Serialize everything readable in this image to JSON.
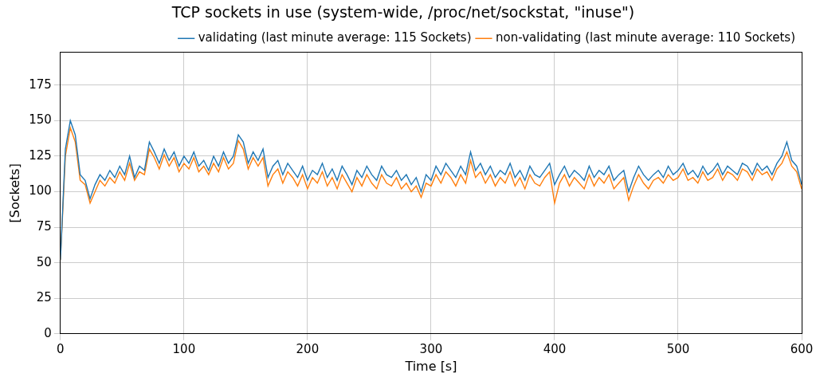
{
  "chart_data": {
    "type": "line",
    "title": "TCP sockets in use (system-wide, /proc/net/sockstat, \"inuse\")",
    "x_label": "Time [s]",
    "y_label": "[Sockets]",
    "x": [
      0,
      4,
      8,
      12,
      16,
      20,
      24,
      28,
      32,
      36,
      40,
      44,
      48,
      52,
      56,
      60,
      64,
      68,
      72,
      76,
      80,
      84,
      88,
      92,
      96,
      100,
      104,
      108,
      112,
      116,
      120,
      124,
      128,
      132,
      136,
      140,
      144,
      148,
      152,
      156,
      160,
      164,
      168,
      172,
      176,
      180,
      184,
      188,
      192,
      196,
      200,
      204,
      208,
      212,
      216,
      220,
      224,
      228,
      232,
      236,
      240,
      244,
      248,
      252,
      256,
      260,
      264,
      268,
      272,
      276,
      280,
      284,
      288,
      292,
      296,
      300,
      304,
      308,
      312,
      316,
      320,
      324,
      328,
      332,
      336,
      340,
      344,
      348,
      352,
      356,
      360,
      364,
      368,
      372,
      376,
      380,
      384,
      388,
      392,
      396,
      400,
      404,
      408,
      412,
      416,
      420,
      424,
      428,
      432,
      436,
      440,
      444,
      448,
      452,
      456,
      460,
      464,
      468,
      472,
      476,
      480,
      484,
      488,
      492,
      496,
      500,
      504,
      508,
      512,
      516,
      520,
      524,
      528,
      532,
      536,
      540,
      544,
      548,
      552,
      556,
      560,
      564,
      568,
      572,
      576,
      580,
      584,
      588,
      592,
      596,
      600
    ],
    "series": [
      {
        "name": "validating (last minute average: 115 Sockets)",
        "color": "#1f77b4",
        "values": [
          52,
          130,
          150,
          140,
          112,
          108,
          95,
          105,
          112,
          108,
          115,
          110,
          118,
          112,
          125,
          110,
          118,
          115,
          135,
          128,
          120,
          130,
          122,
          128,
          118,
          125,
          120,
          128,
          118,
          122,
          115,
          125,
          118,
          128,
          120,
          125,
          140,
          135,
          120,
          128,
          122,
          130,
          110,
          118,
          122,
          112,
          120,
          115,
          110,
          118,
          108,
          115,
          112,
          120,
          110,
          116,
          108,
          118,
          112,
          105,
          115,
          110,
          118,
          112,
          108,
          118,
          112,
          110,
          115,
          108,
          112,
          105,
          110,
          100,
          112,
          108,
          118,
          112,
          120,
          115,
          110,
          118,
          112,
          128,
          115,
          120,
          112,
          118,
          110,
          115,
          112,
          120,
          110,
          115,
          108,
          118,
          112,
          110,
          115,
          120,
          105,
          112,
          118,
          110,
          115,
          112,
          108,
          118,
          110,
          115,
          112,
          118,
          108,
          112,
          115,
          100,
          110,
          118,
          112,
          108,
          112,
          115,
          110,
          118,
          112,
          115,
          120,
          112,
          115,
          110,
          118,
          112,
          115,
          120,
          112,
          118,
          115,
          112,
          120,
          118,
          112,
          120,
          115,
          118,
          112,
          120,
          125,
          135,
          122,
          118,
          105
        ]
      },
      {
        "name": "non-validating (last minute average: 110 Sockets)",
        "color": "#ff7f0e",
        "values": [
          52,
          125,
          145,
          135,
          108,
          105,
          92,
          100,
          108,
          104,
          110,
          106,
          114,
          108,
          120,
          108,
          114,
          112,
          130,
          124,
          116,
          126,
          118,
          124,
          114,
          120,
          116,
          124,
          114,
          118,
          112,
          120,
          114,
          124,
          116,
          120,
          136,
          130,
          116,
          124,
          118,
          124,
          104,
          112,
          116,
          106,
          114,
          110,
          104,
          112,
          102,
          110,
          106,
          114,
          104,
          110,
          102,
          112,
          106,
          100,
          110,
          104,
          112,
          106,
          102,
          112,
          106,
          104,
          110,
          102,
          106,
          100,
          104,
          96,
          106,
          104,
          112,
          106,
          114,
          110,
          104,
          112,
          106,
          122,
          110,
          114,
          106,
          112,
          104,
          110,
          106,
          114,
          104,
          110,
          102,
          112,
          106,
          104,
          110,
          114,
          92,
          106,
          112,
          104,
          110,
          106,
          102,
          112,
          104,
          110,
          106,
          112,
          102,
          106,
          110,
          94,
          104,
          112,
          106,
          102,
          108,
          110,
          106,
          112,
          108,
          110,
          116,
          108,
          110,
          106,
          114,
          108,
          110,
          116,
          108,
          114,
          112,
          108,
          116,
          114,
          108,
          116,
          112,
          114,
          108,
          116,
          120,
          128,
          118,
          114,
          102
        ]
      }
    ],
    "xlim": [
      0,
      600
    ],
    "xticks": [
      0,
      100,
      200,
      300,
      400,
      500,
      600
    ],
    "ylim": [
      0,
      198
    ],
    "yticks": [
      0,
      25,
      50,
      75,
      100,
      125,
      150,
      175
    ],
    "grid": true,
    "legend": "upper right"
  }
}
